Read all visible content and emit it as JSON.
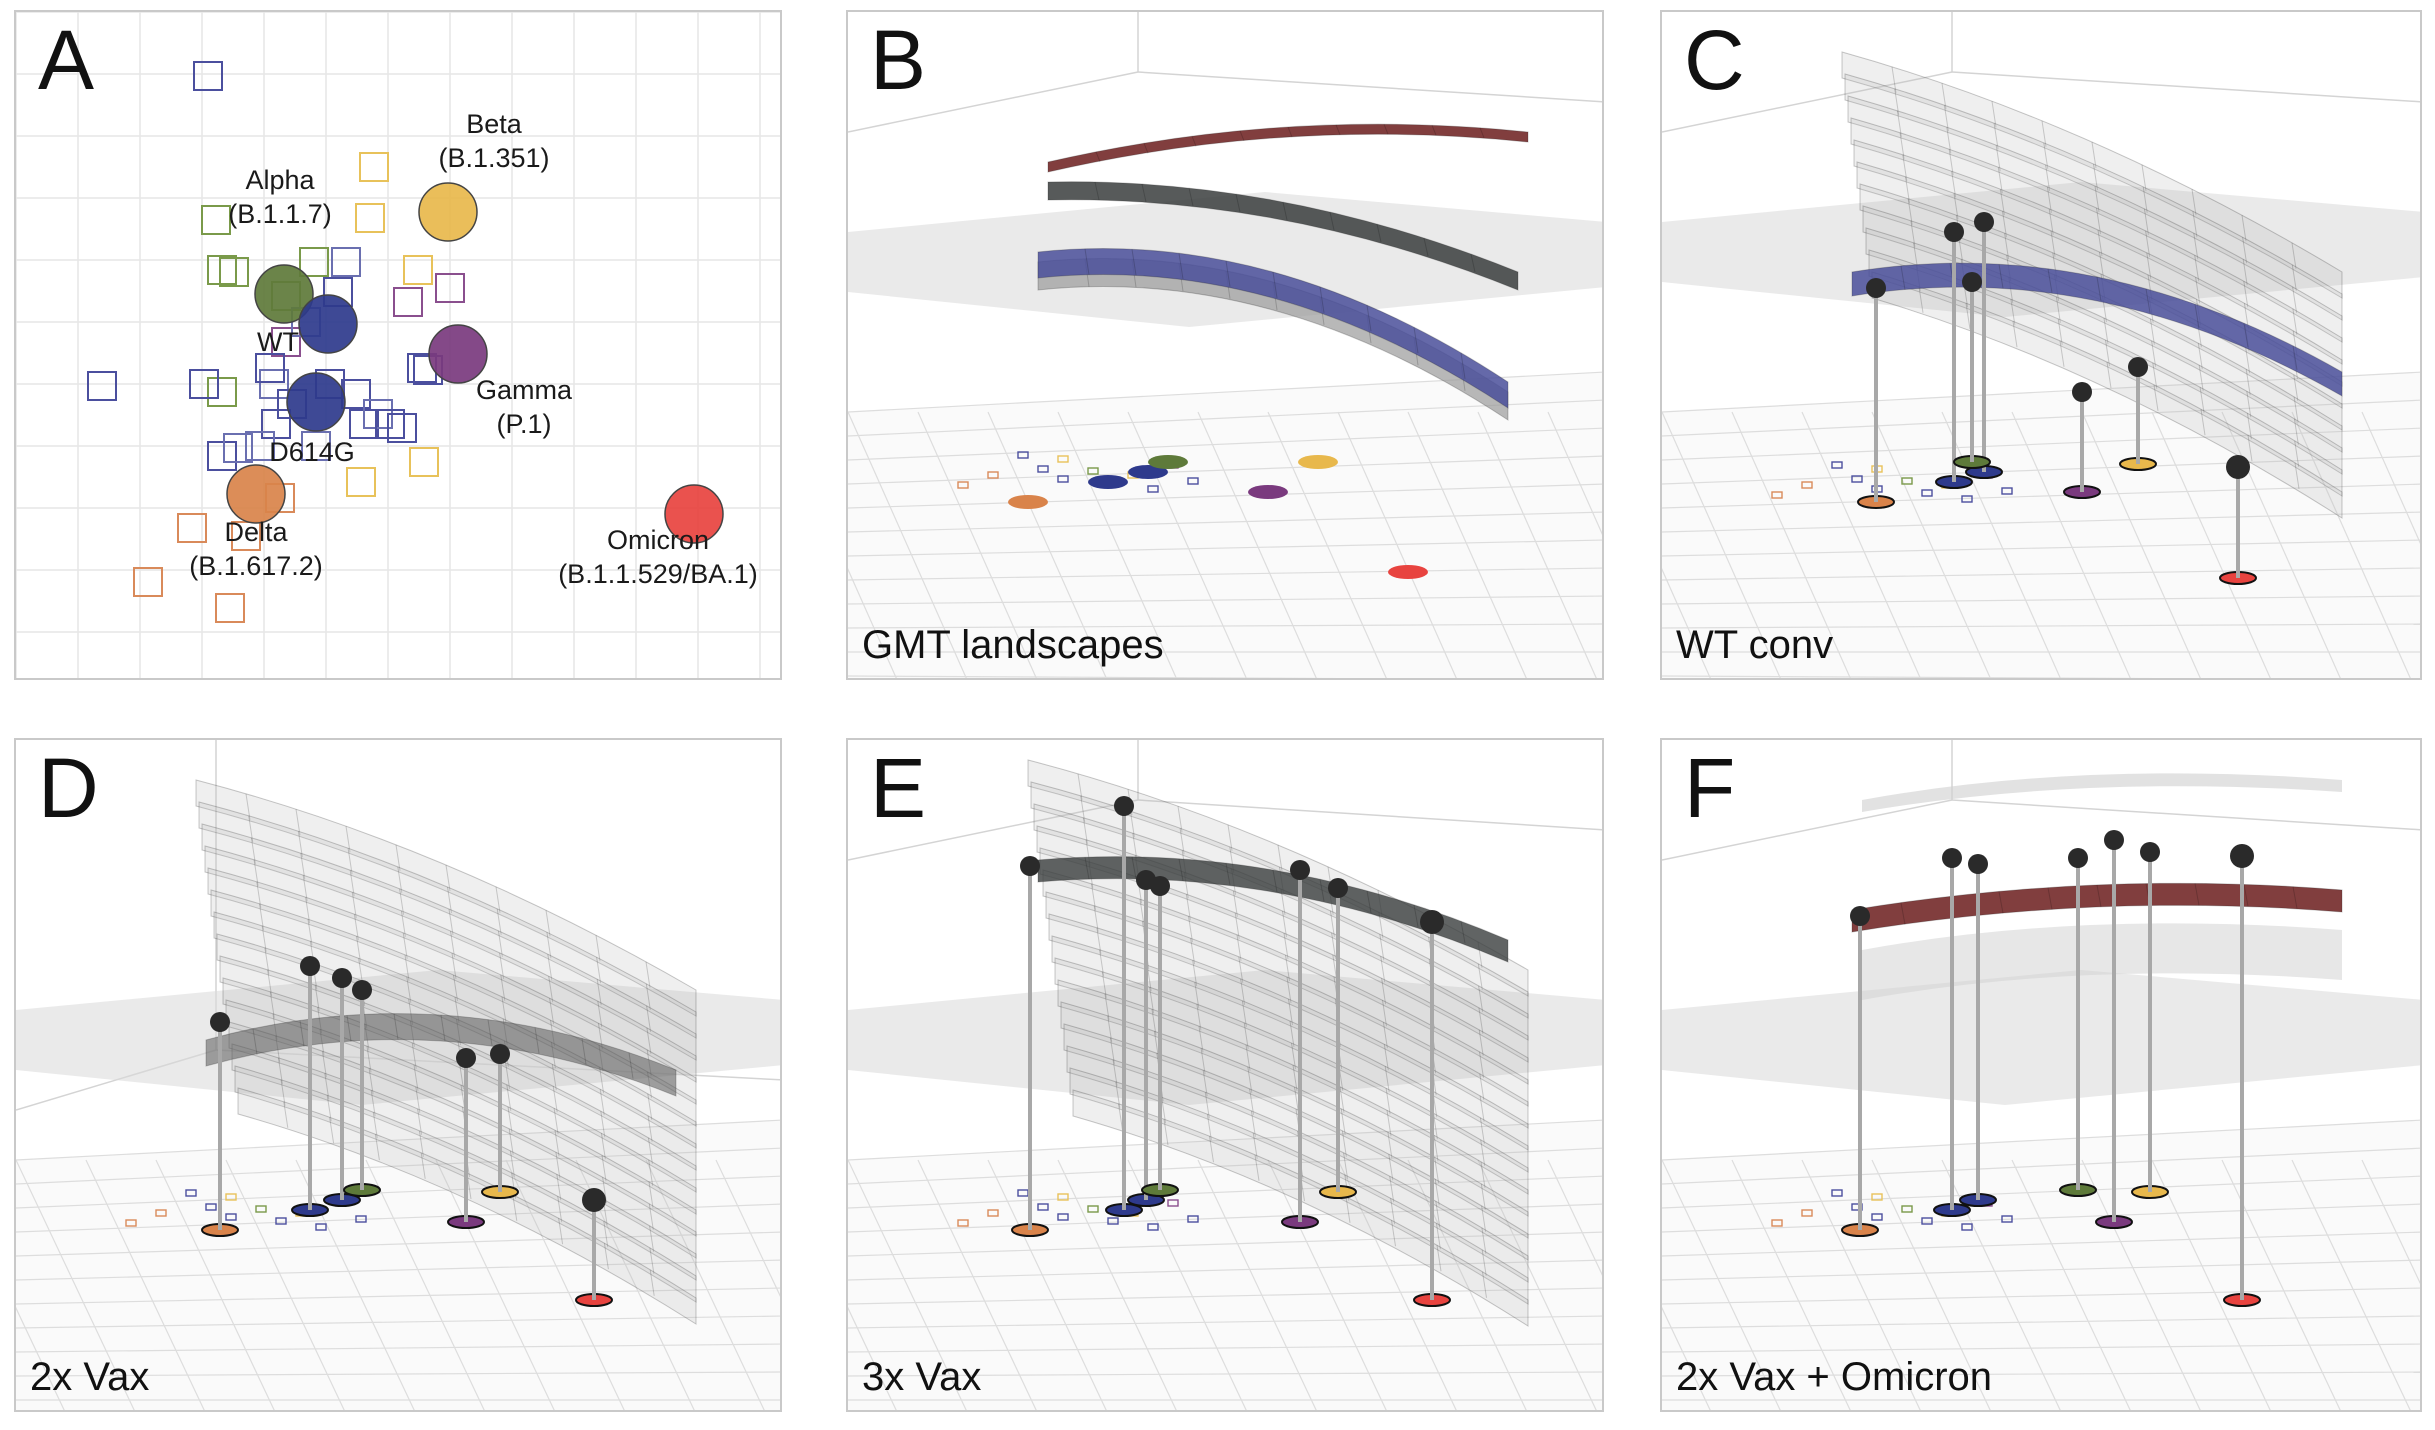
{
  "figure": {
    "panels": [
      {
        "letter": "A",
        "caption": ""
      },
      {
        "letter": "B",
        "caption": "GMT landscapes"
      },
      {
        "letter": "C",
        "caption": "WT conv"
      },
      {
        "letter": "D",
        "caption": "2x Vax"
      },
      {
        "letter": "E",
        "caption": "3x Vax"
      },
      {
        "letter": "F",
        "caption": "2x Vax + Omicron"
      }
    ]
  },
  "antigenic_map": {
    "variants": [
      {
        "name": "Alpha",
        "lineage": "(B.1.1.7)",
        "color": "#5e7a3a"
      },
      {
        "name": "Beta",
        "lineage": "(B.1.351)",
        "color": "#e8b84c"
      },
      {
        "name": "WT",
        "lineage": "",
        "color": "#2e3a8c"
      },
      {
        "name": "Gamma",
        "lineage": "(P.1)",
        "color": "#7a3a7e"
      },
      {
        "name": "D614G",
        "lineage": "",
        "color": "#2e3a8c"
      },
      {
        "name": "Delta",
        "lineage": "(B.1.617.2)",
        "color": "#d9834a"
      },
      {
        "name": "Omicron",
        "lineage": "(B.1.1.529/BA.1)",
        "color": "#e8433f"
      }
    ],
    "colors": {
      "grid": "#e6e6e6",
      "sera_wt": "#4b4f9e",
      "sera_alpha": "#7a9a4a",
      "sera_beta": "#e8c25a",
      "sera_gamma": "#8a4f8e",
      "sera_delta": "#d98a5a",
      "sera_d614g": "#6a6fb0"
    }
  },
  "surfaces": {
    "colors": {
      "blue": "#4a4f9a",
      "dark": "#3a3d3d",
      "red": "#6b1c1c",
      "gray": "#9a9a9a",
      "base_plane": "#d8d8d8"
    }
  }
}
